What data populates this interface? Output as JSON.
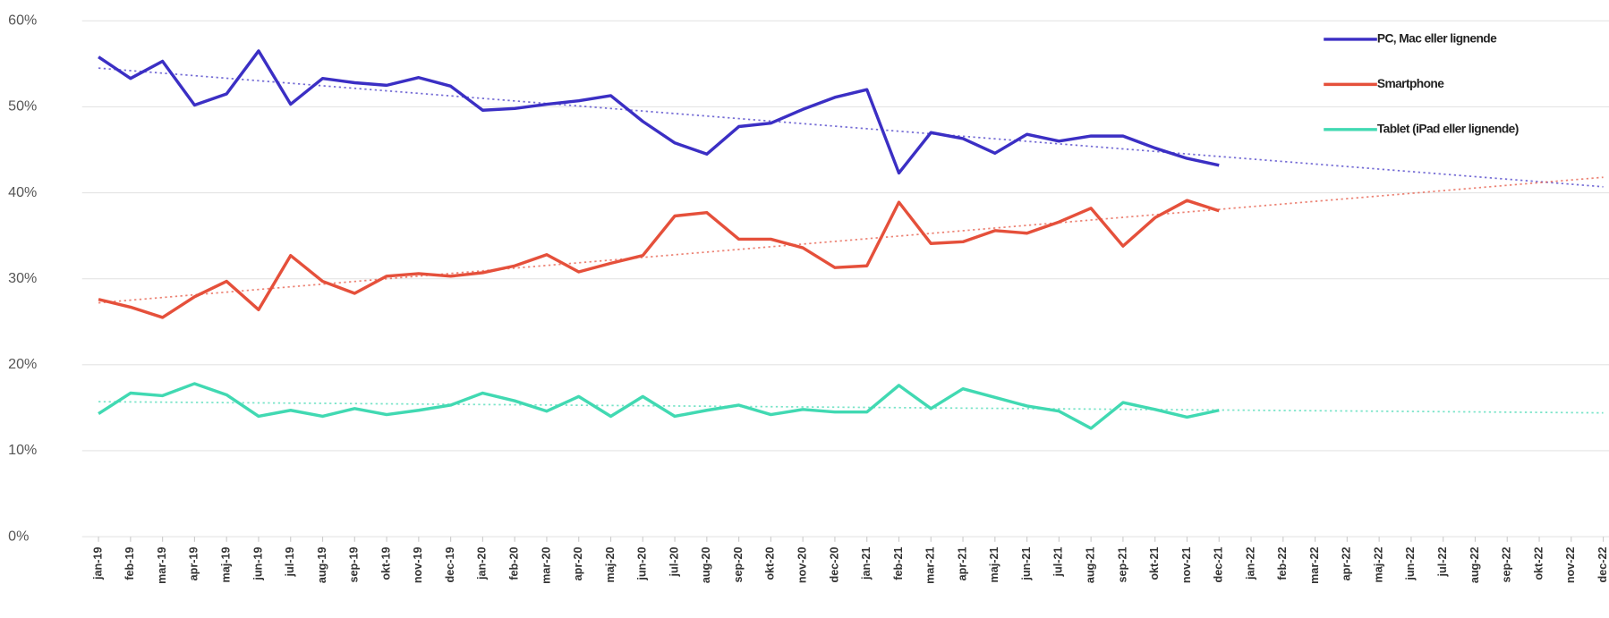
{
  "chart_data": {
    "type": "line",
    "categories": [
      "jan-19",
      "feb-19",
      "mar-19",
      "apr-19",
      "maj-19",
      "jun-19",
      "jul-19",
      "aug-19",
      "sep-19",
      "okt-19",
      "nov-19",
      "dec-19",
      "jan-20",
      "feb-20",
      "mar-20",
      "apr-20",
      "maj-20",
      "jun-20",
      "jul-20",
      "aug-20",
      "sep-20",
      "okt-20",
      "nov-20",
      "dec-20",
      "jan-21",
      "feb-21",
      "mar-21",
      "apr-21",
      "maj-21",
      "jun-21",
      "jul-21",
      "aug-21",
      "sep-21",
      "okt-21",
      "nov-21",
      "dec-21",
      "jan-22",
      "feb-22",
      "mar-22",
      "apr-22",
      "maj-22",
      "jun-22",
      "jul-22",
      "aug-22",
      "sep-22",
      "okt-22",
      "nov-22",
      "dec-22"
    ],
    "series": [
      {
        "name": "PC, Mac eller lignende",
        "color": "#3b2fc4",
        "values": [
          55.8,
          53.3,
          55.3,
          50.2,
          51.5,
          56.5,
          50.3,
          53.3,
          52.8,
          52.5,
          53.4,
          52.4,
          49.6,
          49.8,
          50.3,
          50.7,
          51.3,
          48.3,
          45.8,
          44.5,
          47.7,
          48.1,
          49.7,
          51.1,
          52.0,
          42.3,
          47.0,
          46.3,
          44.6,
          46.8,
          46.0,
          46.6,
          46.6,
          45.2,
          44.0,
          43.2,
          null,
          null,
          null,
          null,
          null,
          null,
          null,
          null,
          null,
          null,
          null,
          null
        ],
        "trend": [
          54.5,
          40.7
        ]
      },
      {
        "name": "Smartphone",
        "color": "#e5503b",
        "values": [
          27.6,
          26.7,
          25.5,
          27.9,
          29.7,
          26.4,
          32.7,
          29.7,
          28.3,
          30.3,
          30.6,
          30.3,
          30.7,
          31.5,
          32.8,
          30.8,
          31.8,
          32.7,
          37.3,
          37.7,
          34.6,
          34.6,
          33.6,
          31.3,
          31.5,
          38.9,
          34.1,
          34.3,
          35.6,
          35.3,
          36.6,
          38.2,
          33.8,
          37.1,
          39.1,
          37.9,
          null,
          null,
          null,
          null,
          null,
          null,
          null,
          null,
          null,
          null,
          null,
          null
        ],
        "trend": [
          27.2,
          41.8
        ]
      },
      {
        "name": "Tablet (iPad eller lignende)",
        "color": "#41d9b2",
        "values": [
          14.3,
          16.7,
          16.4,
          17.8,
          16.5,
          14.0,
          14.7,
          14.0,
          14.9,
          14.2,
          14.7,
          15.3,
          16.7,
          15.8,
          14.6,
          16.3,
          14.0,
          16.3,
          14.0,
          14.7,
          15.3,
          14.2,
          14.8,
          14.5,
          14.5,
          17.6,
          14.9,
          17.2,
          16.2,
          15.2,
          14.6,
          12.6,
          15.6,
          14.8,
          13.9,
          14.7,
          null,
          null,
          null,
          null,
          null,
          null,
          null,
          null,
          null,
          null,
          null,
          null
        ],
        "trend": [
          15.7,
          14.4
        ]
      }
    ],
    "ylim": [
      0,
      60
    ],
    "yticks": [
      {
        "value": 0,
        "label": "0%"
      },
      {
        "value": 10,
        "label": "10%"
      },
      {
        "value": 20,
        "label": "20%"
      },
      {
        "value": 30,
        "label": "30%"
      },
      {
        "value": 40,
        "label": "40%"
      },
      {
        "value": 50,
        "label": "50%"
      },
      {
        "value": 60,
        "label": "60%"
      }
    ],
    "grid": true,
    "legend": "top-right"
  }
}
